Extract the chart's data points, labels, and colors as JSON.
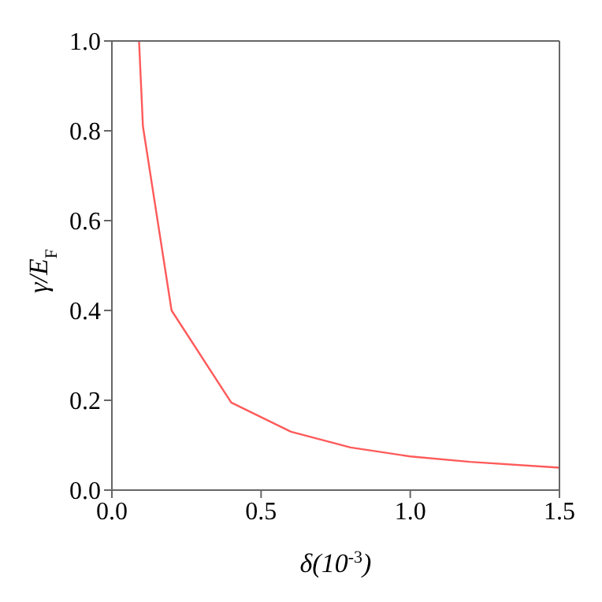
{
  "chart_data": {
    "type": "line",
    "xlabel": "δ(10$^{-3}$)",
    "ylabel": "γ/E$_{F}$",
    "x": [
      0.091,
      0.104,
      0.2,
      0.4,
      0.6,
      0.8,
      1.0,
      1.2,
      1.5
    ],
    "series": [
      {
        "color": "#ff5a5a",
        "values": [
          1.0,
          0.81,
          0.4,
          0.195,
          0.13,
          0.095,
          0.075,
          0.063,
          0.05
        ]
      }
    ],
    "xlim": [
      0,
      1.5
    ],
    "xticks": [
      {
        "value": 0,
        "label": "0.0"
      },
      0.5,
      {
        "value": 1,
        "label": "1.0"
      },
      1.5
    ],
    "ylim": [
      0,
      1.0
    ],
    "yticks": [
      {
        "value": 0,
        "label": "0.0"
      },
      0.2,
      0.4,
      0.6,
      0.8,
      {
        "value": 1,
        "label": "1.0"
      }
    ],
    "grid": false,
    "marker": "none",
    "line_style": "solid"
  }
}
